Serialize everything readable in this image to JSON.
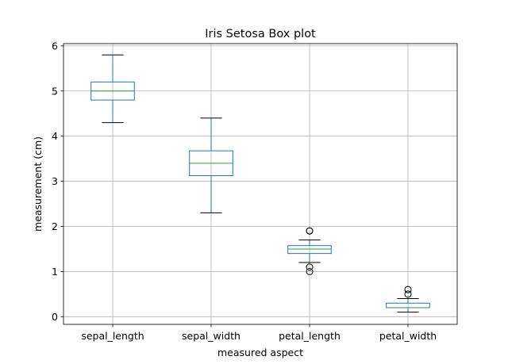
{
  "chart_data": {
    "type": "boxplot",
    "title": "Iris Setosa Box plot",
    "xlabel": "measured aspect",
    "ylabel": "measurement (cm)",
    "ylim": [
      -0.17,
      6.05
    ],
    "yticks": [
      0,
      1,
      2,
      3,
      4,
      5,
      6
    ],
    "ytick_labels": [
      "0",
      "1",
      "2",
      "3",
      "4",
      "5",
      "6"
    ],
    "grid": true,
    "colors": {
      "box": "#1f77b4",
      "median": "#2ca02c",
      "whisker": "#1f77b4",
      "cap": "#000000",
      "flier": "#000000",
      "grid": "#b0b0b0"
    },
    "boxes": [
      {
        "category": "sepal_length",
        "min": 4.3,
        "q1": 4.8,
        "median": 5.0,
        "q3": 5.2,
        "max": 5.8,
        "fliers": []
      },
      {
        "category": "sepal_width",
        "min": 2.3,
        "q1": 3.125,
        "median": 3.4,
        "q3": 3.675,
        "max": 4.4,
        "fliers": []
      },
      {
        "category": "petal_length",
        "min": 1.2,
        "q1": 1.4,
        "median": 1.5,
        "q3": 1.575,
        "max": 1.7,
        "fliers": [
          1.0,
          1.1,
          1.9,
          1.9
        ]
      },
      {
        "category": "petal_width",
        "min": 0.1,
        "q1": 0.2,
        "median": 0.2,
        "q3": 0.3,
        "max": 0.4,
        "fliers": [
          0.5,
          0.6
        ]
      }
    ]
  }
}
